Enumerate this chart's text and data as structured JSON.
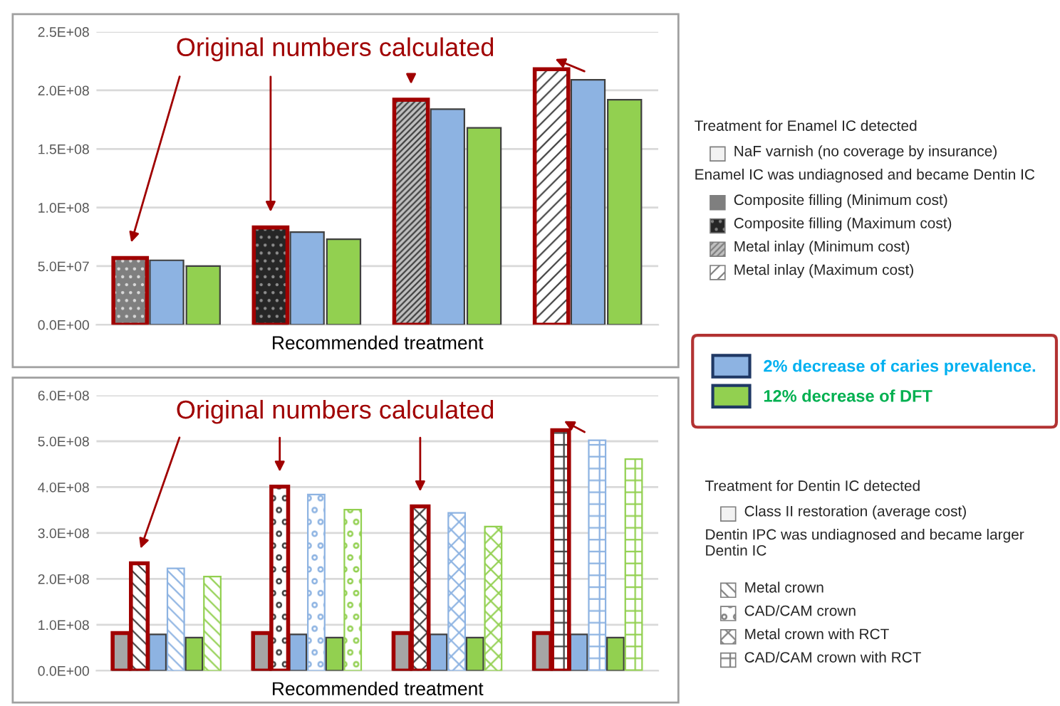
{
  "chart_data": [
    {
      "type": "bar",
      "categories": [
        null,
        null,
        null,
        null
      ],
      "xlabel": "Recommended treatment",
      "series": [
        {
          "colors": [
            "#7f7f7f",
            "#262626",
            "#bfbfbf",
            "#ffffff"
          ],
          "values": [
            57000000,
            83000000,
            192000000,
            218000000
          ]
        },
        {
          "name": "2% decrease of caries prevalence.",
          "color": "#8db3e2",
          "values": [
            55000000,
            79000000,
            184000000,
            209000000
          ]
        },
        {
          "name": "12% decrease of DFT",
          "color": "#92d050",
          "values": [
            50000000,
            73000000,
            168000000,
            192000000
          ]
        }
      ],
      "ylim": [
        0,
        250000000
      ],
      "yticks": [
        {
          "value": 0,
          "label": "0.0E+00"
        },
        {
          "value": 50000000,
          "label": "5.0E+07"
        },
        {
          "value": 100000000,
          "label": "1.0E+08"
        },
        {
          "value": 150000000,
          "label": "1.5E+08"
        },
        {
          "value": 200000000,
          "label": "2.0E+08"
        },
        {
          "value": 250000000,
          "label": "2.5E+08"
        }
      ],
      "grid": "y",
      "legend": "right",
      "annotations": [
        "Original numbers calculated",
        "Treatment for Enamel IC detected",
        "NaF varnish (no coverage by insurance)",
        "Enamel IC was undiagnosed and became Dentin IC",
        "Composite filling (Minimum cost)",
        "Composite filling (Maximum cost)",
        "Metal inlay (Minimum cost)",
        "Metal inlay (Maximum cost)"
      ]
    },
    {
      "type": "bar",
      "categories": [
        null,
        null,
        null,
        null
      ],
      "xlabel": "Recommended treatment",
      "series": [
        {
          "color": "#a6a6a6",
          "values": [
            82000000,
            82000000,
            82000000,
            82000000
          ]
        },
        {
          "color": "#404040",
          "values": [
            234000000,
            401000000,
            358000000,
            524000000
          ]
        },
        {
          "color": "#8db3e2",
          "values": [
            79000000,
            79000000,
            79000000,
            79000000
          ]
        },
        {
          "color": "#8db3e2",
          "values": [
            223000000,
            384000000,
            344000000,
            502000000
          ]
        },
        {
          "color": "#92d050",
          "values": [
            72000000,
            72000000,
            72000000,
            72000000
          ]
        },
        {
          "color": "#92d050",
          "values": [
            205000000,
            351000000,
            314000000,
            461000000
          ]
        }
      ],
      "ylim": [
        0,
        600000000
      ],
      "yticks": [
        {
          "value": 0,
          "label": "0.0E+00"
        },
        {
          "value": 100000000,
          "label": "1.0E+08"
        },
        {
          "value": 200000000,
          "label": "2.0E+08"
        },
        {
          "value": 300000000,
          "label": "3.0E+08"
        },
        {
          "value": 400000000,
          "label": "4.0E+08"
        },
        {
          "value": 500000000,
          "label": "5.0E+08"
        },
        {
          "value": 600000000,
          "label": "6.0E+08"
        }
      ],
      "grid": "y",
      "annotations": [
        "Original numbers calculated",
        "Treatment for Dentin IC detected",
        "Class II restoration (average cost)",
        "Dentin IPC was undiagnosed and became larger Dentin IC",
        "Metal crown",
        "CAD/CAM crown",
        "Metal crown with RCT",
        "CAD/CAM crown with RCT"
      ]
    }
  ]
}
